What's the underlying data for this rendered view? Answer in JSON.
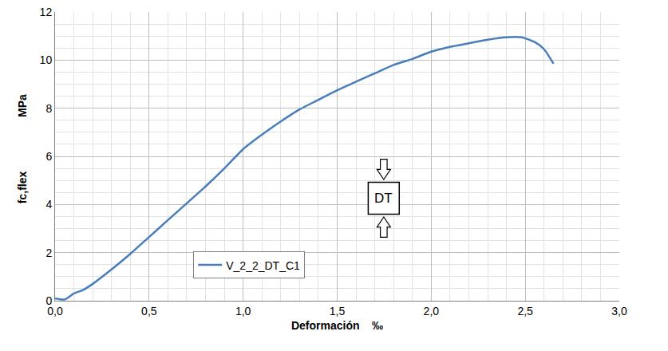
{
  "chart_data": {
    "type": "line",
    "xlabel": "Deformación    ‰",
    "ylabel": "fc,flex",
    "ylabel_unit": "MPa",
    "annotations": [
      {
        "text": "DT"
      }
    ],
    "series": [
      {
        "name": "V_2_2_DT_C1",
        "color": "#4a7ebb",
        "x": [
          0.0,
          0.05,
          0.1,
          0.15,
          0.2,
          0.3,
          0.4,
          0.5,
          0.6,
          0.7,
          0.8,
          0.9,
          1.0,
          1.1,
          1.2,
          1.3,
          1.4,
          1.5,
          1.6,
          1.7,
          1.8,
          1.9,
          2.0,
          2.1,
          2.2,
          2.3,
          2.4,
          2.48,
          2.55,
          2.6,
          2.65
        ],
        "values": [
          0.1,
          0.05,
          0.3,
          0.45,
          0.7,
          1.3,
          1.95,
          2.65,
          3.35,
          4.05,
          4.75,
          5.5,
          6.3,
          6.9,
          7.45,
          7.95,
          8.35,
          8.75,
          9.1,
          9.45,
          9.8,
          10.05,
          10.35,
          10.55,
          10.7,
          10.85,
          10.95,
          10.95,
          10.75,
          10.45,
          9.85
        ]
      }
    ],
    "xlim": [
      0,
      3
    ],
    "xticks": [
      {
        "value": 0,
        "label": "0,0"
      },
      {
        "value": 0.5,
        "label": "0,5"
      },
      {
        "value": 1,
        "label": "1,0"
      },
      {
        "value": 1.5,
        "label": "1,5"
      },
      {
        "value": 2,
        "label": "2,0"
      },
      {
        "value": 2.5,
        "label": "2,5"
      },
      {
        "value": 3,
        "label": "3,0"
      }
    ],
    "ylim": [
      0,
      12
    ],
    "yticks": [
      0,
      2,
      4,
      6,
      8,
      10,
      12
    ],
    "grid": true,
    "legend": "lower center"
  }
}
